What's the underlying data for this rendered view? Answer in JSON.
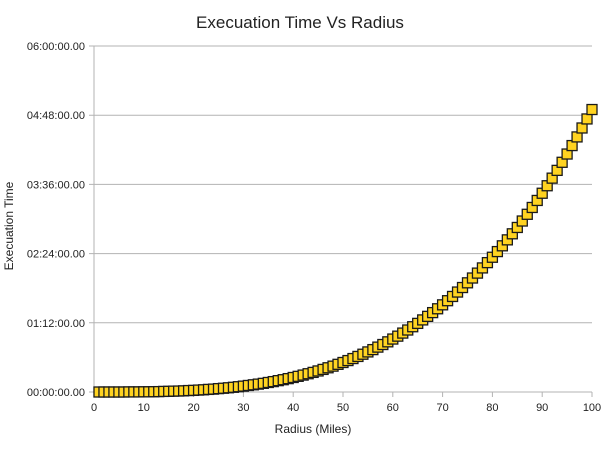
{
  "chart_data": {
    "type": "scatter",
    "title": "Execuation Time Vs Radius",
    "xlabel": "Radius (Miles)",
    "ylabel": "Execuation Time",
    "xlim": [
      0,
      100
    ],
    "ylim_minutes": [
      0,
      360
    ],
    "x_ticks": [
      0,
      10,
      20,
      30,
      40,
      50,
      60,
      70,
      80,
      90,
      100
    ],
    "y_ticks": [
      {
        "minutes": 0,
        "label": "00:00:00.00"
      },
      {
        "minutes": 72,
        "label": "01:12:00.00"
      },
      {
        "minutes": 144,
        "label": "02:24:00.00"
      },
      {
        "minutes": 216,
        "label": "03:36:00.00"
      },
      {
        "minutes": 288,
        "label": "04:48:00.00"
      },
      {
        "minutes": 360,
        "label": "06:00:00.00"
      }
    ],
    "grid": "horizontal",
    "legend": "none",
    "marker": "square",
    "marker_color": "#ffd320",
    "marker_edge_color": "#1a1a1a",
    "series": [
      {
        "x": [
          1,
          2,
          3,
          4,
          5,
          6,
          7,
          8,
          9,
          10,
          11,
          12,
          13,
          14,
          15,
          16,
          17,
          18,
          19,
          20,
          21,
          22,
          23,
          24,
          25,
          26,
          27,
          28,
          29,
          30,
          31,
          32,
          33,
          34,
          35,
          36,
          37,
          38,
          39,
          40,
          41,
          42,
          43,
          44,
          45,
          46,
          47,
          48,
          49,
          50,
          51,
          52,
          53,
          54,
          55,
          56,
          57,
          58,
          59,
          60,
          61,
          62,
          63,
          64,
          65,
          66,
          67,
          68,
          69,
          70,
          71,
          72,
          73,
          74,
          75,
          76,
          77,
          78,
          79,
          80,
          81,
          82,
          83,
          84,
          85,
          86,
          87,
          88,
          89,
          90,
          91,
          92,
          93,
          94,
          95,
          96,
          97,
          98,
          99,
          100
        ],
        "y_minutes": [
          0.0,
          0.0,
          0.0,
          0.0,
          0.0,
          0.0,
          0.1,
          0.1,
          0.1,
          0.2,
          0.2,
          0.3,
          0.4,
          0.6,
          0.7,
          0.9,
          1.0,
          1.2,
          1.5,
          1.7,
          2.0,
          2.3,
          2.7,
          3.0,
          3.5,
          3.9,
          4.4,
          4.9,
          5.5,
          6.1,
          6.8,
          7.5,
          8.2,
          9.0,
          9.9,
          10.8,
          11.8,
          12.8,
          13.9,
          15.1,
          16.3,
          17.6,
          19.0,
          20.4,
          21.9,
          23.5,
          25.2,
          26.9,
          28.8,
          30.7,
          32.7,
          34.8,
          37.0,
          39.3,
          41.7,
          44.1,
          46.7,
          49.4,
          52.2,
          55.1,
          58.1,
          61.3,
          64.5,
          67.9,
          71.4,
          75.0,
          78.7,
          82.6,
          86.6,
          90.7,
          95.0,
          99.4,
          104.0,
          108.7,
          113.6,
          118.6,
          123.7,
          129.1,
          134.6,
          140.2,
          146.1,
          152.1,
          158.3,
          164.6,
          171.2,
          177.9,
          184.9,
          192.0,
          199.3,
          206.8,
          214.6,
          222.5,
          230.6,
          239.0,
          247.6,
          256.4,
          265.4,
          274.7,
          284.1,
          293.9
        ]
      }
    ]
  }
}
